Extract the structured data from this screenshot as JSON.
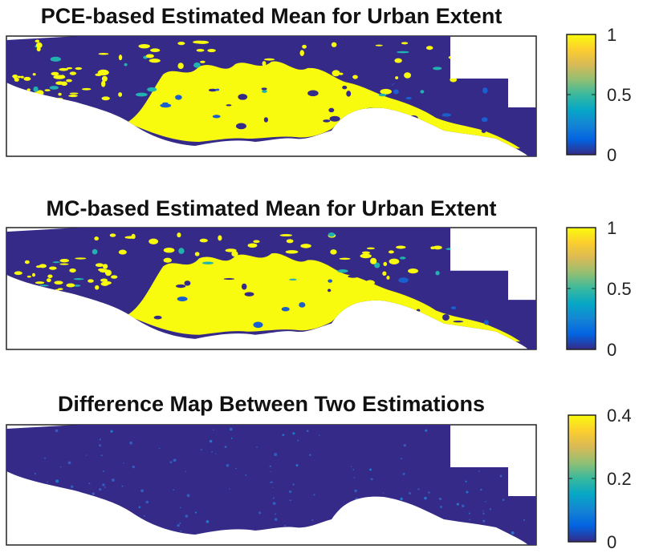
{
  "chart_data": [
    {
      "type": "heatmap",
      "title": "PCE-based Estimated Mean for Urban Extent",
      "colorbar": {
        "min": 0,
        "max": 1,
        "ticks": [
          0,
          0.5,
          1
        ],
        "tick_labels": [
          "0",
          "0.5",
          "1"
        ]
      },
      "colormap": "parula",
      "content": "urban-extent"
    },
    {
      "type": "heatmap",
      "title": "MC-based Estimated Mean for Urban Extent",
      "colorbar": {
        "min": 0,
        "max": 1,
        "ticks": [
          0,
          0.5,
          1
        ],
        "tick_labels": [
          "0",
          "0.5",
          "1"
        ]
      },
      "colormap": "parula",
      "content": "urban-extent"
    },
    {
      "type": "heatmap",
      "title": "Difference Map Between Two Estimations",
      "colorbar": {
        "min": 0,
        "max": 0.4,
        "ticks": [
          0,
          0.2,
          0.4
        ],
        "tick_labels": [
          "0",
          "0.2",
          "0.4"
        ]
      },
      "colormap": "parula",
      "content": "difference"
    }
  ],
  "colors": {
    "background_value": "#352a87",
    "high_value": "#f9fb0e",
    "mid_value": "#21b2b0",
    "frame": "#222222"
  }
}
